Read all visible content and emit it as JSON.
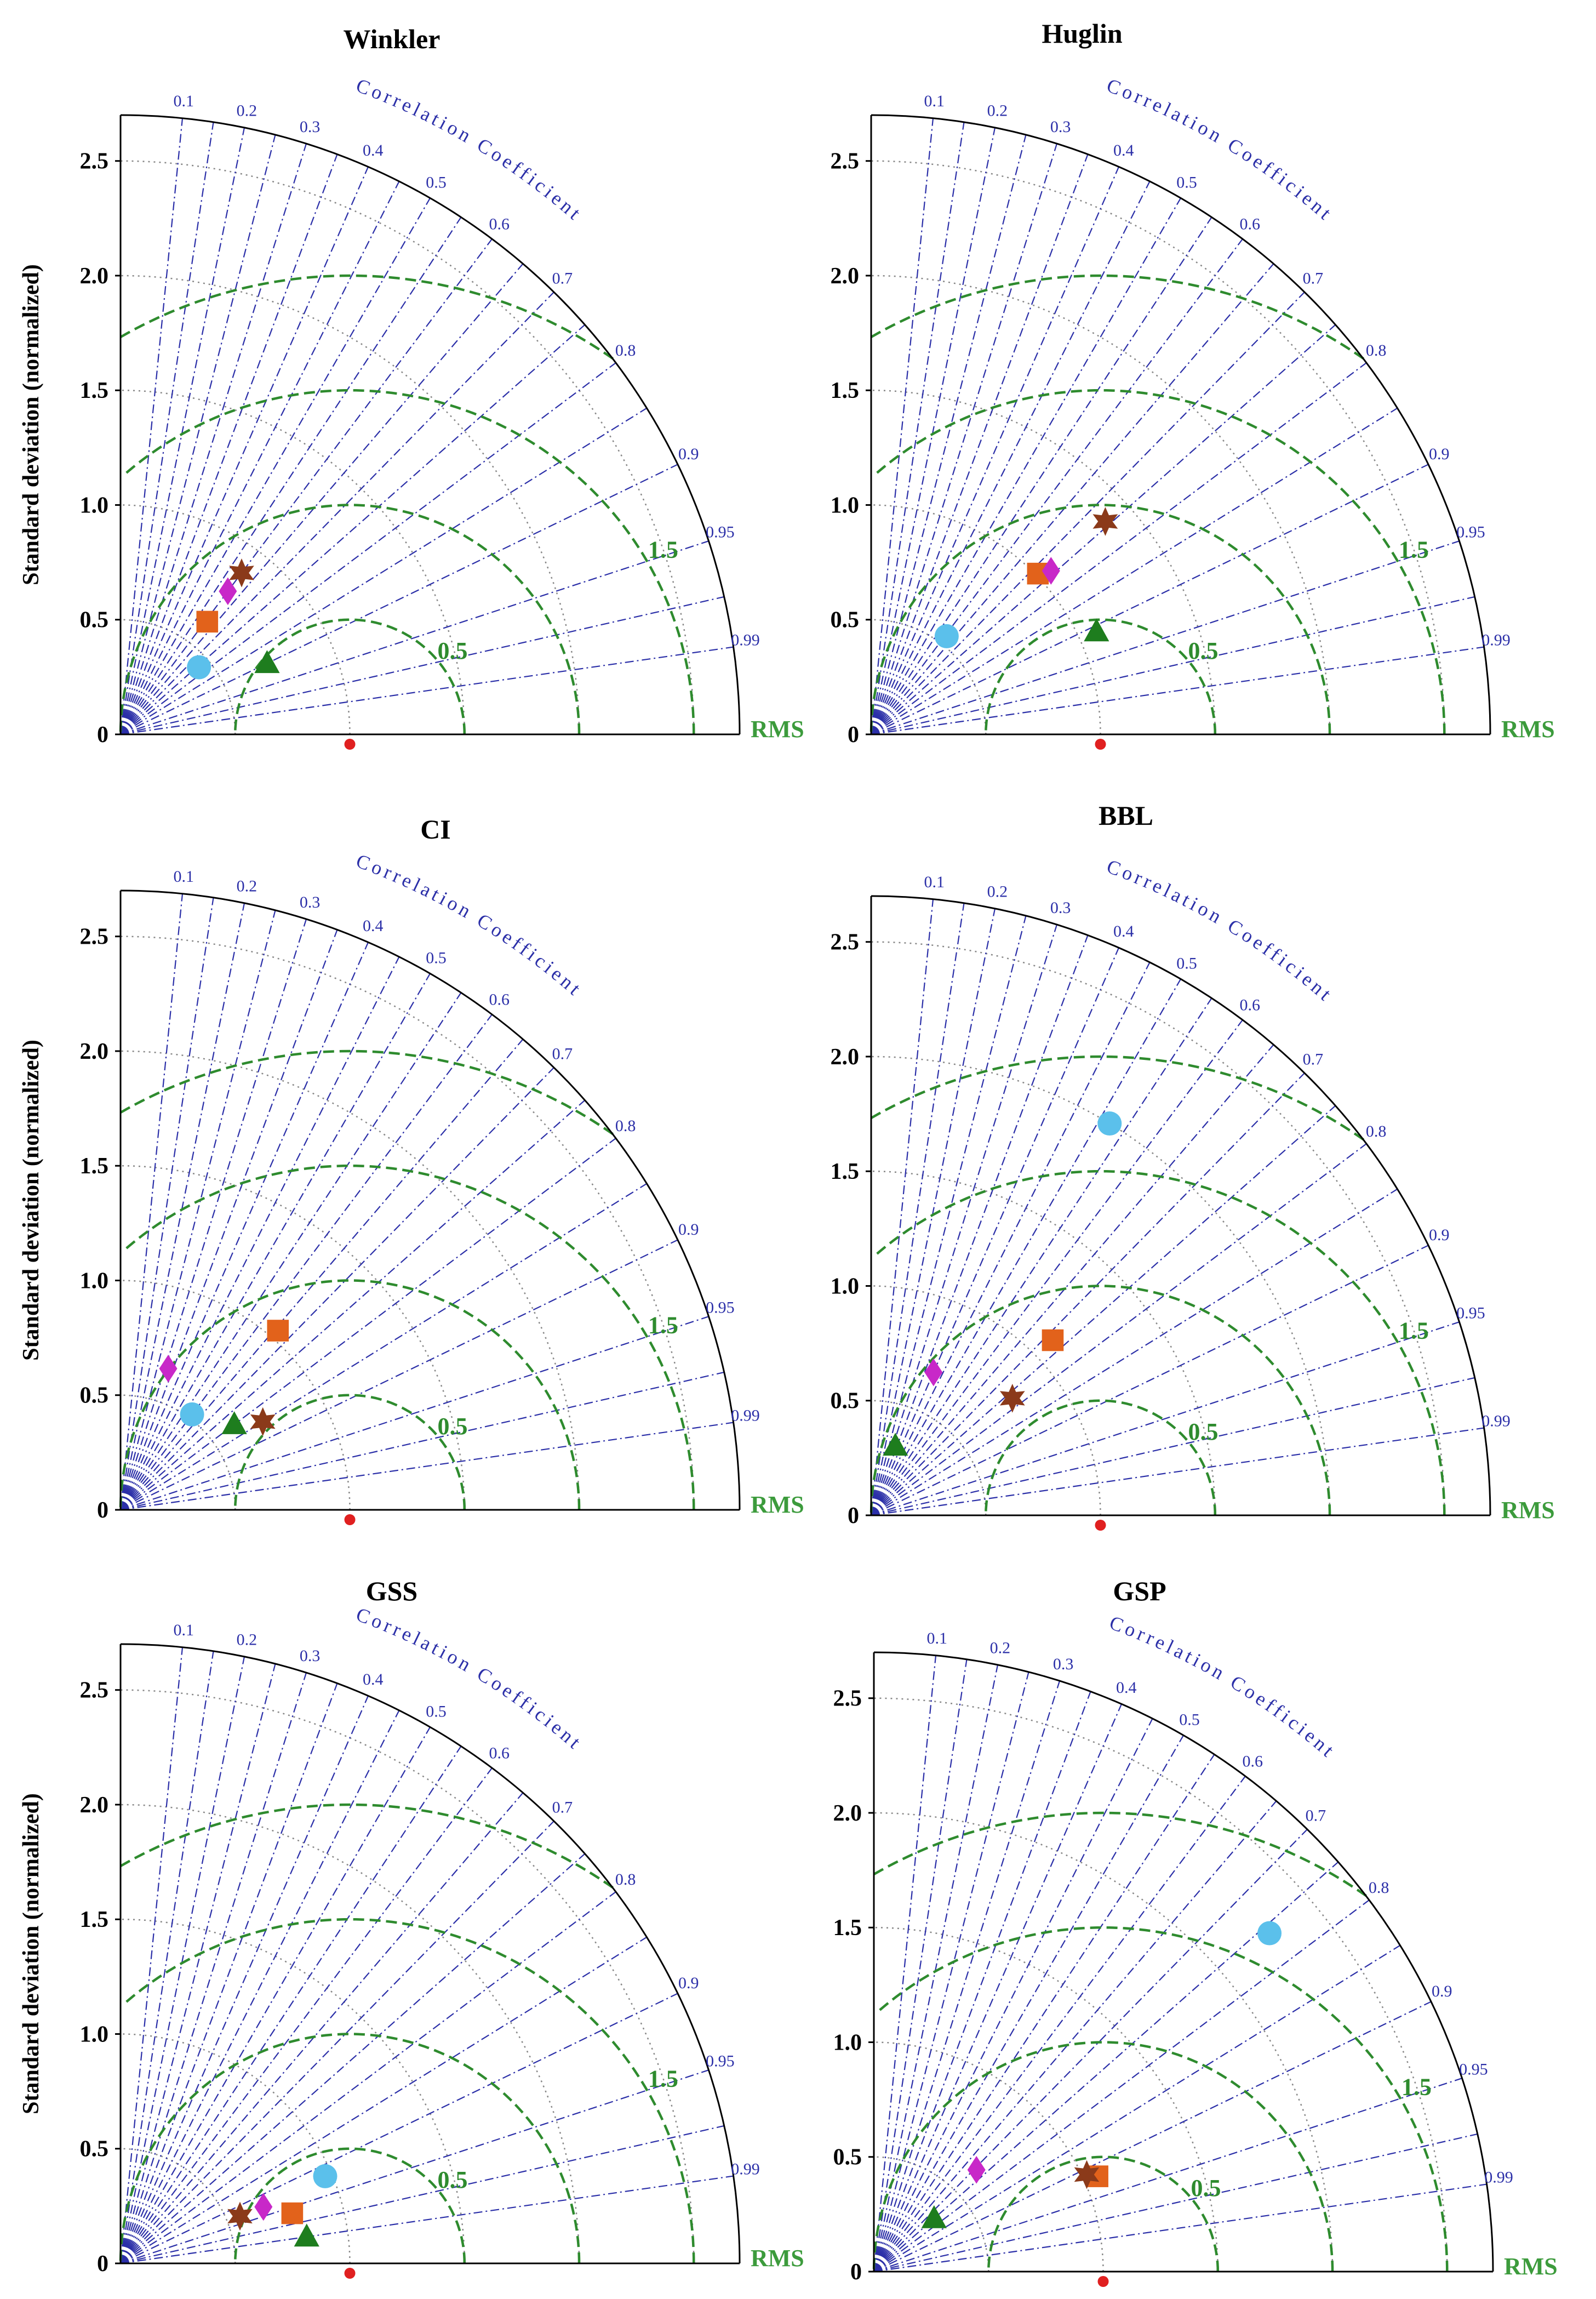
{
  "figure": {
    "ylabel": "Standard deviation (normalized)",
    "correlation_label": "Correlation Coefficient",
    "rms_label": "RMS",
    "colors": {
      "outer_arc": "#000000",
      "correlation_lines": "#2b2fa8",
      "rms_contours": "#2e8b2e",
      "grid": "#888888",
      "reference_point": "#e02020"
    }
  },
  "chart_data": [
    {
      "type": "taylor",
      "title": "Winkler",
      "ylim": [
        0,
        2.7
      ],
      "std_ticks": [
        "0",
        "0.5",
        "1.0",
        "1.5",
        "2.0",
        "2.5"
      ],
      "correlation_ticks": [
        "0.1",
        "0.2",
        "0.3",
        "0.4",
        "0.5",
        "0.6",
        "0.7",
        "0.8",
        "0.9",
        "0.95",
        "0.99"
      ],
      "rms_labels": [
        "0.5",
        "1.5"
      ],
      "reference_std": 1.0,
      "points": [
        {
          "marker": "circle",
          "color": "#5bc0eb",
          "std": 0.45,
          "corr": 0.76
        },
        {
          "marker": "square",
          "color": "#e2621b",
          "std": 0.62,
          "corr": 0.61
        },
        {
          "marker": "diamond",
          "color": "#c828c8",
          "std": 0.78,
          "corr": 0.6
        },
        {
          "marker": "star",
          "color": "#8b3a1a",
          "std": 0.88,
          "corr": 0.6
        },
        {
          "marker": "triangle",
          "color": "#1e7d1e",
          "std": 0.71,
          "corr": 0.9
        }
      ]
    },
    {
      "type": "taylor",
      "title": "Huglin",
      "ylim": [
        0,
        2.7
      ],
      "std_ticks": [
        "0",
        "0.5",
        "1.0",
        "1.5",
        "2.0",
        "2.5"
      ],
      "correlation_ticks": [
        "0.1",
        "0.2",
        "0.3",
        "0.4",
        "0.5",
        "0.6",
        "0.7",
        "0.8",
        "0.9",
        "0.95",
        "0.99"
      ],
      "rms_labels": [
        "0.5",
        "1.5"
      ],
      "reference_std": 1.0,
      "points": [
        {
          "marker": "circle",
          "color": "#5bc0eb",
          "std": 0.54,
          "corr": 0.61
        },
        {
          "marker": "square",
          "color": "#e2621b",
          "std": 1.01,
          "corr": 0.72
        },
        {
          "marker": "diamond",
          "color": "#c828c8",
          "std": 1.06,
          "corr": 0.74
        },
        {
          "marker": "star",
          "color": "#8b3a1a",
          "std": 1.38,
          "corr": 0.74
        },
        {
          "marker": "triangle",
          "color": "#1e7d1e",
          "std": 1.08,
          "corr": 0.91
        }
      ]
    },
    {
      "type": "taylor",
      "title": "CI",
      "ylim": [
        0,
        2.7
      ],
      "std_ticks": [
        "0",
        "0.5",
        "1.0",
        "1.5",
        "2.0",
        "2.5"
      ],
      "correlation_ticks": [
        "0.1",
        "0.2",
        "0.3",
        "0.4",
        "0.5",
        "0.6",
        "0.7",
        "0.8",
        "0.9",
        "0.95",
        "0.99"
      ],
      "rms_labels": [
        "0.5",
        "1.5"
      ],
      "reference_std": 1.0,
      "points": [
        {
          "marker": "circle",
          "color": "#5bc0eb",
          "std": 0.52,
          "corr": 0.6
        },
        {
          "marker": "square",
          "color": "#e2621b",
          "std": 1.04,
          "corr": 0.66
        },
        {
          "marker": "diamond",
          "color": "#c828c8",
          "std": 0.65,
          "corr": 0.32
        },
        {
          "marker": "star",
          "color": "#8b3a1a",
          "std": 0.73,
          "corr": 0.85
        },
        {
          "marker": "triangle",
          "color": "#1e7d1e",
          "std": 0.62,
          "corr": 0.8
        }
      ]
    },
    {
      "type": "taylor",
      "title": "BBL",
      "ylim": [
        0,
        2.7
      ],
      "std_ticks": [
        "0",
        "0.5",
        "1.0",
        "1.5",
        "2.0",
        "2.5"
      ],
      "correlation_ticks": [
        "0.1",
        "0.2",
        "0.3",
        "0.4",
        "0.5",
        "0.6",
        "0.7",
        "0.8",
        "0.9",
        "0.95",
        "0.99"
      ],
      "rms_labels": [
        "0.5",
        "1.5"
      ],
      "reference_std": 1.0,
      "points": [
        {
          "marker": "circle",
          "color": "#5bc0eb",
          "std": 2.0,
          "corr": 0.52
        },
        {
          "marker": "square",
          "color": "#e2621b",
          "std": 1.1,
          "corr": 0.72
        },
        {
          "marker": "diamond",
          "color": "#c828c8",
          "std": 0.68,
          "corr": 0.4
        },
        {
          "marker": "star",
          "color": "#8b3a1a",
          "std": 0.8,
          "corr": 0.77
        },
        {
          "marker": "triangle",
          "color": "#1e7d1e",
          "std": 0.32,
          "corr": 0.33
        }
      ]
    },
    {
      "type": "taylor",
      "title": "GSS",
      "ylim": [
        0,
        2.7
      ],
      "std_ticks": [
        "0",
        "0.5",
        "1.0",
        "1.5",
        "2.0",
        "2.5"
      ],
      "correlation_ticks": [
        "0.1",
        "0.2",
        "0.3",
        "0.4",
        "0.5",
        "0.6",
        "0.7",
        "0.8",
        "0.9",
        "0.95",
        "0.99"
      ],
      "rms_labels": [
        "0.5",
        "1.5"
      ],
      "reference_std": 1.0,
      "points": [
        {
          "marker": "circle",
          "color": "#5bc0eb",
          "std": 0.97,
          "corr": 0.92
        },
        {
          "marker": "square",
          "color": "#e2621b",
          "std": 0.78,
          "corr": 0.96
        },
        {
          "marker": "diamond",
          "color": "#c828c8",
          "std": 0.67,
          "corr": 0.93
        },
        {
          "marker": "star",
          "color": "#8b3a1a",
          "std": 0.56,
          "corr": 0.93
        },
        {
          "marker": "triangle",
          "color": "#1e7d1e",
          "std": 0.82,
          "corr": 0.99
        }
      ]
    },
    {
      "type": "taylor",
      "title": "GSP",
      "ylim": [
        0,
        2.7
      ],
      "std_ticks": [
        "0",
        "0.5",
        "1.0",
        "1.5",
        "2.0",
        "2.5"
      ],
      "correlation_ticks": [
        "0.1",
        "0.2",
        "0.3",
        "0.4",
        "0.5",
        "0.6",
        "0.7",
        "0.8",
        "0.9",
        "0.95",
        "0.99"
      ],
      "rms_labels": [
        "0.5",
        "1.5"
      ],
      "reference_std": 1.0,
      "points": [
        {
          "marker": "circle",
          "color": "#5bc0eb",
          "std": 2.27,
          "corr": 0.76
        },
        {
          "marker": "square",
          "color": "#e2621b",
          "std": 1.06,
          "corr": 0.92
        },
        {
          "marker": "diamond",
          "color": "#c828c8",
          "std": 0.63,
          "corr": 0.71
        },
        {
          "marker": "star",
          "color": "#8b3a1a",
          "std": 1.02,
          "corr": 0.91
        },
        {
          "marker": "triangle",
          "color": "#1e7d1e",
          "std": 0.35,
          "corr": 0.75
        }
      ]
    }
  ]
}
